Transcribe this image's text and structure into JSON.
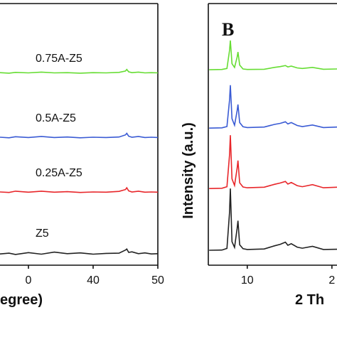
{
  "chart_data": [
    {
      "type": "line",
      "xlabel": "egree)",
      "x": [
        25.6,
        27,
        28,
        30,
        32,
        34,
        36,
        38,
        40,
        42,
        44,
        45,
        45.2,
        45.5,
        46,
        47,
        48,
        49,
        50
      ],
      "series": [
        {
          "name": "0.75A-Z5",
          "color": "#66dd33",
          "values": [
            73.6,
            73.4,
            73.7,
            73.5,
            73.8,
            73.5,
            73.6,
            73.4,
            73.6,
            73.5,
            73.7,
            74.2,
            74.8,
            73.9,
            73.6,
            73.8,
            73.5,
            73.6,
            73.5
          ]
        },
        {
          "name": "0.5A-Z5",
          "color": "#3a5bd4",
          "values": [
            48.9,
            48.7,
            49.1,
            48.8,
            49.2,
            48.8,
            49.0,
            48.7,
            48.9,
            48.8,
            49.0,
            49.8,
            50.4,
            49.3,
            48.9,
            49.2,
            48.8,
            48.9,
            48.8
          ]
        },
        {
          "name": "0.25A-Z5",
          "color": "#e8262a",
          "values": [
            28.0,
            27.8,
            28.3,
            27.9,
            28.3,
            27.9,
            28.1,
            27.8,
            28.0,
            27.9,
            28.2,
            28.9,
            29.6,
            28.4,
            28.0,
            28.3,
            27.9,
            28.0,
            27.9
          ]
        },
        {
          "name": "Z5",
          "color": "#222222",
          "values": [
            4.3,
            4.6,
            4.1,
            4.8,
            4.2,
            5.0,
            4.4,
            4.7,
            4.2,
            4.5,
            4.6,
            5.8,
            6.2,
            4.9,
            5.1,
            4.4,
            4.7,
            4.3,
            4.4
          ]
        }
      ],
      "xlim": [
        25,
        50
      ],
      "ylim": [
        0,
        100
      ],
      "xticks": [
        {
          "value": 30,
          "label": "0"
        },
        40,
        50
      ]
    },
    {
      "type": "line",
      "panel_label": "B",
      "ylabel": "Intensity (a.u.)",
      "xlabel": "2 Th",
      "x": [
        5.5,
        7,
        7.6,
        7.9,
        8.0,
        8.2,
        8.5,
        8.8,
        8.9,
        9.1,
        9.5,
        10,
        12,
        13.2,
        13.9,
        14.5,
        14.8,
        15.2,
        15.9,
        16.5,
        17.7,
        19,
        20.6
      ],
      "series": [
        {
          "color": "#66dd33",
          "values": [
            74.7,
            74.8,
            75.2,
            82.0,
            85.9,
            77.0,
            75.6,
            79.5,
            81.5,
            76.5,
            75.0,
            74.8,
            74.9,
            75.6,
            75.9,
            76.3,
            75.8,
            76.1,
            75.4,
            75.2,
            75.6,
            74.9,
            75.0
          ]
        },
        {
          "color": "#3a5bd4",
          "values": [
            52.4,
            52.5,
            53.0,
            63.0,
            68.8,
            56.0,
            53.5,
            59.0,
            61.4,
            54.5,
            52.9,
            52.6,
            52.8,
            53.8,
            54.2,
            54.8,
            54.0,
            54.5,
            53.4,
            53.0,
            53.6,
            52.6,
            52.8
          ]
        },
        {
          "color": "#e8262a",
          "values": [
            29.3,
            29.4,
            30.0,
            42.0,
            49.7,
            33.0,
            30.5,
            37.0,
            40.0,
            31.5,
            29.9,
            29.6,
            29.8,
            30.9,
            31.4,
            32.0,
            31.0,
            31.6,
            30.4,
            30.0,
            30.8,
            29.6,
            29.8
          ]
        },
        {
          "color": "#222222",
          "values": [
            5.7,
            5.8,
            6.4,
            20.0,
            29.3,
            9.0,
            6.8,
            14.0,
            17.0,
            7.8,
            6.3,
            6.0,
            6.2,
            7.4,
            8.0,
            8.8,
            7.6,
            8.2,
            6.9,
            6.5,
            7.2,
            6.0,
            6.1
          ]
        }
      ],
      "xlim": [
        5.4,
        20.6
      ],
      "ylim": [
        0,
        100
      ],
      "xticks": [
        10,
        {
          "value": 20,
          "label": "2"
        }
      ]
    }
  ]
}
